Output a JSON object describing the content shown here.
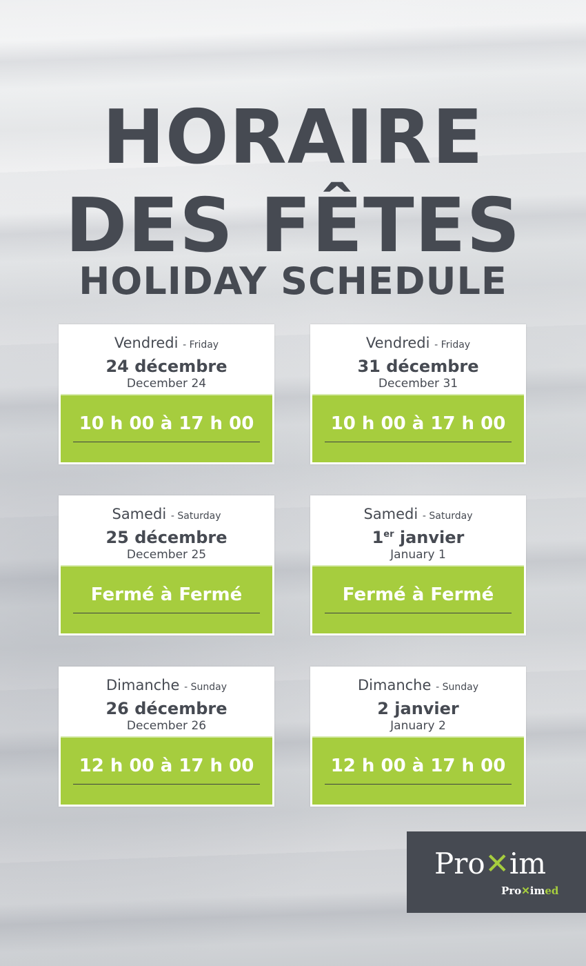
{
  "title": {
    "line1": "HORAIRE",
    "line2": "DES FÊTES",
    "line3": "HOLIDAY SCHEDULE"
  },
  "cards": [
    {
      "day_fr": "Vendredi",
      "day_en": "- Friday",
      "date_fr": "24 décembre",
      "date_sup": "",
      "date_fr_rest": "",
      "date_en": "December 24",
      "hours": "10 h 00 à 17 h 00"
    },
    {
      "day_fr": "Vendredi",
      "day_en": "- Friday",
      "date_fr": "31 décembre",
      "date_sup": "",
      "date_fr_rest": "",
      "date_en": "December 31",
      "hours": "10 h 00 à 17 h 00"
    },
    {
      "day_fr": "Samedi",
      "day_en": "- Saturday",
      "date_fr": "25 décembre",
      "date_sup": "",
      "date_fr_rest": "",
      "date_en": "December 25",
      "hours": "Fermé à Fermé"
    },
    {
      "day_fr": "Samedi",
      "day_en": "- Saturday",
      "date_fr": "1",
      "date_sup": "er",
      "date_fr_rest": " janvier",
      "date_en": "January 1",
      "hours": "Fermé à Fermé"
    },
    {
      "day_fr": "Dimanche",
      "day_en": "- Sunday",
      "date_fr": "26 décembre",
      "date_sup": "",
      "date_fr_rest": "",
      "date_en": "December 26",
      "hours": "12 h 00 à 17 h 00"
    },
    {
      "day_fr": "Dimanche",
      "day_en": "- Sunday",
      "date_fr": "2 janvier",
      "date_sup": "",
      "date_fr_rest": "",
      "date_en": "January 2",
      "hours": "12 h 00 à 17 h 00"
    }
  ],
  "logo": {
    "main_a": "Pro",
    "main_x": "✕",
    "main_b": "im",
    "sub_a": "Pro",
    "sub_x": "✕",
    "sub_b": "im",
    "sub_c": "ed"
  },
  "colors": {
    "green": "#a6cd3e",
    "dark": "#464a52"
  }
}
